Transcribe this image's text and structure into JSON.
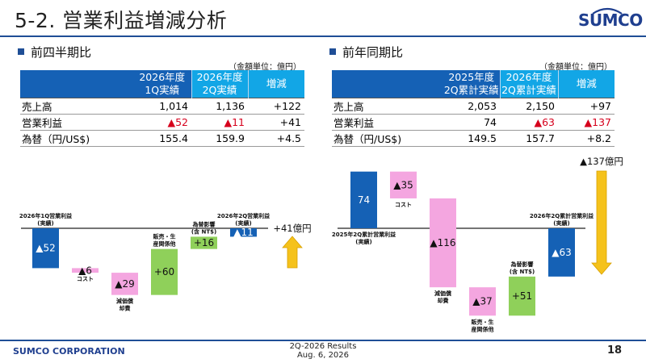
{
  "title": "5-2. 営業利益増減分析",
  "logo": {
    "text": "SUMCO",
    "color": "#1f3f8f"
  },
  "left": {
    "heading": "前四半期比",
    "unit": "（金額単位：億円）",
    "columns": [
      {
        "line1": "2026年度",
        "line2": "1Q実績"
      },
      {
        "line1": "2026年度",
        "line2": "2Q実績"
      },
      {
        "line1": "増減",
        "line2": ""
      }
    ],
    "rows": [
      {
        "label": "売上高",
        "a": "1,014",
        "b": "1,136",
        "c": "+122"
      },
      {
        "label": "営業利益",
        "a": "▲52",
        "b": "▲11",
        "c": "+41"
      },
      {
        "label": "為替（円/US$)",
        "a": "155.4",
        "b": "159.9",
        "c": "+4.5"
      }
    ]
  },
  "right": {
    "heading": "前年同期比",
    "unit": "（金額単位：億円）",
    "columns": [
      {
        "line1": "2025年度",
        "line2": "2Q累計実績"
      },
      {
        "line1": "2026年度",
        "line2": "2Q累計実績"
      },
      {
        "line1": "増減",
        "line2": ""
      }
    ],
    "rows": [
      {
        "label": "売上高",
        "a": "2,053",
        "b": "2,150",
        "c": "+97"
      },
      {
        "label": "営業利益",
        "a": "74",
        "b": "▲63",
        "c": "▲137"
      },
      {
        "label": "為替（円/US$)",
        "a": "149.5",
        "b": "157.7",
        "c": "+8.2"
      }
    ]
  },
  "chart_data": [
    {
      "type": "bar",
      "subtype": "waterfall",
      "start_value": -52,
      "end_value": -11,
      "steps": [
        {
          "label": "2026年1Q営業利益(実績)",
          "display": "▲52",
          "delta": -52,
          "kind": "total",
          "color": "#1561b5"
        },
        {
          "label": "コスト",
          "display": "▲6",
          "delta": -6,
          "kind": "step",
          "color": "#f4a6e0"
        },
        {
          "label": "減価償却費",
          "display": "▲29",
          "delta": -29,
          "kind": "step",
          "color": "#f4a6e0"
        },
        {
          "label": "販売・生産関係他",
          "display": "+60",
          "delta": 60,
          "kind": "step",
          "color": "#8fd05a"
        },
        {
          "label": "為替影響(含 NT$)",
          "display": "+16",
          "delta": 16,
          "kind": "step",
          "color": "#8fd05a"
        },
        {
          "label": "2026年2Q営業利益(実績)",
          "display": "▲11",
          "delta": -11,
          "kind": "total",
          "color": "#1561b5"
        }
      ],
      "annotation": "+41億円",
      "arrow_direction": "up",
      "arrow_color": "#f5c21b"
    },
    {
      "type": "bar",
      "subtype": "waterfall",
      "start_value": 74,
      "end_value": -63,
      "steps": [
        {
          "label": "2025年2Q累計営業利益(実績)",
          "display": "74",
          "delta": 74,
          "kind": "total",
          "color": "#1561b5"
        },
        {
          "label": "コスト",
          "display": "▲35",
          "delta": -35,
          "kind": "step",
          "color": "#f4a6e0"
        },
        {
          "label": "減価償却費",
          "display": "▲116",
          "delta": -116,
          "kind": "step",
          "color": "#f4a6e0"
        },
        {
          "label": "販売・生産関係他",
          "display": "▲37",
          "delta": -37,
          "kind": "step",
          "color": "#f4a6e0"
        },
        {
          "label": "為替影響(含 NT$)",
          "display": "+51",
          "delta": 51,
          "kind": "step",
          "color": "#8fd05a"
        },
        {
          "label": "2026年2Q累計営業利益(実績)",
          "display": "▲63",
          "delta": -63,
          "kind": "total",
          "color": "#1561b5"
        }
      ],
      "annotation": "▲137億円",
      "arrow_direction": "down",
      "arrow_color": "#f5c21b"
    }
  ],
  "footer": {
    "company": "SUMCO CORPORATION",
    "line1": "2Q-2026 Results",
    "line2": "Aug. 6, 2026",
    "page": "18"
  }
}
